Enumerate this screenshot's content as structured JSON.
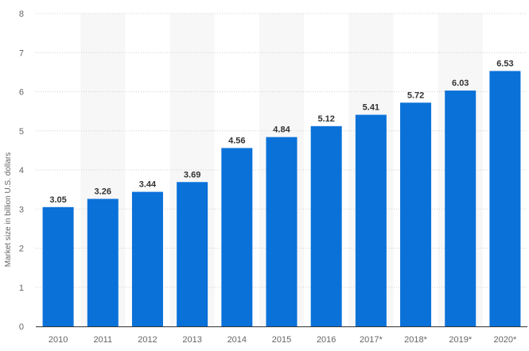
{
  "chart_data": {
    "type": "bar",
    "categories": [
      "2010",
      "2011",
      "2012",
      "2013",
      "2014",
      "2015",
      "2016",
      "2017*",
      "2018*",
      "2019*",
      "2020*"
    ],
    "series": [
      {
        "values": [
          3.05,
          3.26,
          3.44,
          3.69,
          4.56,
          4.84,
          5.12,
          5.41,
          5.72,
          6.03,
          6.53
        ],
        "labels": [
          "3.05",
          "3.26",
          "3.44",
          "3.69",
          "4.56",
          "4.84",
          "5.12",
          "5.41",
          "5.72",
          "6.03",
          "6.53"
        ]
      }
    ],
    "ylabel": "Market size in billion U.S. dollars",
    "xlabel": "",
    "ylim": [
      0,
      8
    ],
    "yticks": [
      "0",
      "1",
      "2",
      "3",
      "4",
      "5",
      "6",
      "7",
      "8"
    ],
    "grid": true,
    "legend": "none",
    "colors": {
      "bar": "#0a71d9",
      "alt_band": "#f7f7f7",
      "grid": "#d0d0d0",
      "axis": "#333333"
    }
  }
}
